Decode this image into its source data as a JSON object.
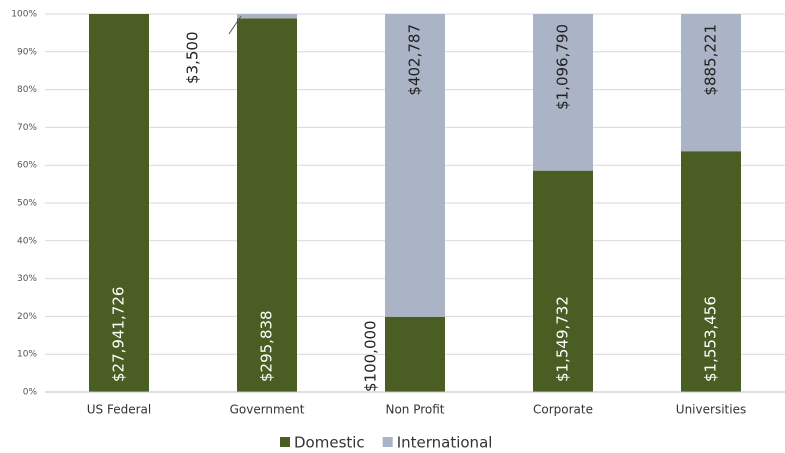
{
  "chart_data": {
    "type": "stacked_percent_bar",
    "categories": [
      "US Federal",
      "Government",
      "Non Profit",
      "Corporate",
      "Universities"
    ],
    "series": [
      {
        "name": "Domestic",
        "color": "#4a5e23",
        "values": [
          27941726,
          295838,
          100000,
          1549732,
          1553456
        ],
        "value_labels": [
          "$27,941,726",
          "$295,838",
          "$100,000",
          "$1,549,732",
          "$1,553,456"
        ]
      },
      {
        "name": "International",
        "color": "#aab4c6",
        "values": [
          null,
          3500,
          402787,
          1096790,
          885221
        ],
        "value_labels": [
          null,
          "$3,500",
          "$402,787",
          "$1,096,790",
          "$885,221"
        ]
      }
    ],
    "ylim": [
      0,
      100
    ],
    "yticks": [
      {
        "value": 0,
        "label": "0%"
      },
      {
        "value": 10,
        "label": "10%"
      },
      {
        "value": 20,
        "label": "20%"
      },
      {
        "value": 30,
        "label": "30%"
      },
      {
        "value": 40,
        "label": "40%"
      },
      {
        "value": 50,
        "label": "50%"
      },
      {
        "value": 60,
        "label": "60%"
      },
      {
        "value": 70,
        "label": "70%"
      },
      {
        "value": 80,
        "label": "80%"
      },
      {
        "value": 90,
        "label": "90%"
      },
      {
        "value": 100,
        "label": "100%"
      }
    ],
    "grid": true,
    "legend": "bottom"
  }
}
